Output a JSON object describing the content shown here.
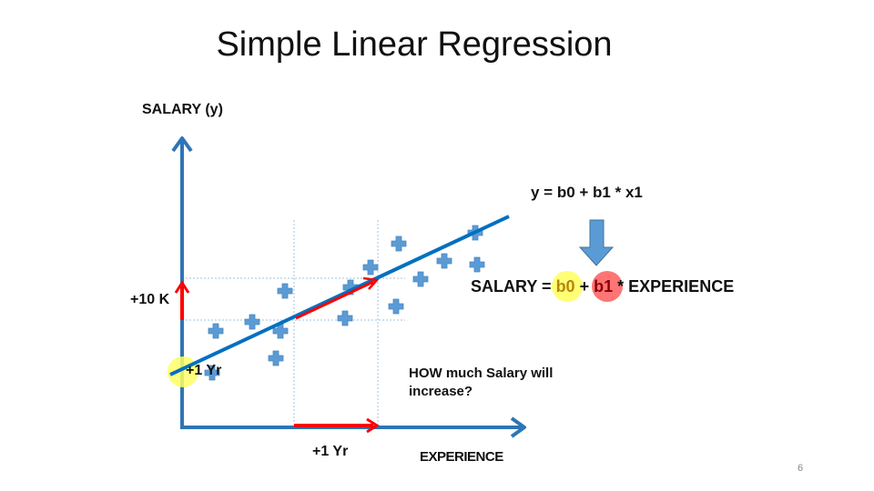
{
  "slide": {
    "title": "Simple Linear Regression",
    "page_number": "6"
  },
  "axes": {
    "y_label": "SALARY (y)",
    "x_label": "EXPERIENCE"
  },
  "annotations": {
    "delta_y": "+10 K",
    "delta_x_bottom": "+1 Yr",
    "delta_x_intercept": "+1 Yr",
    "question": "HOW much Salary will increase?"
  },
  "equations": {
    "general": "y = b0 + b1 * x1",
    "specific": {
      "lhs": "SALARY",
      "eq": "=",
      "b0": "b0",
      "plus": "+",
      "b1": "b1",
      "rest": "* EXPERIENCE"
    }
  },
  "colors": {
    "axis": "#2E75B6",
    "regression_line": "#0070C0",
    "marker": "#5B9BD5",
    "arrow_red": "#FF0000",
    "highlight_yellow": "#FFFF66",
    "highlight_red": "#FF6666",
    "guide_lines": "#9DC3E6",
    "down_arrow": "#5B9BD5"
  },
  "icons": {
    "marker": "plus-marker-icon",
    "down_arrow": "down-arrow-icon"
  }
}
